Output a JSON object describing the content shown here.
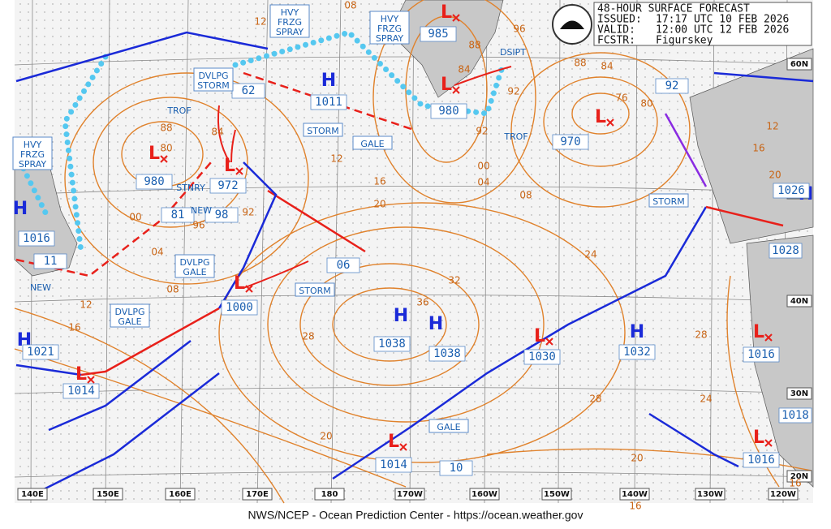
{
  "header": {
    "title": "48-HOUR SURFACE FORECAST",
    "issued_label": "ISSUED:",
    "issued": "17:17 UTC 10 FEB 2026",
    "valid_label": "VALID:",
    "valid": "12:00 UTC 12 FEB 2026",
    "forecaster_label": "FCSTR:",
    "forecaster": "Figurskey"
  },
  "footer": "NWS/NCEP - Ocean Prediction Center - https://ocean.weather.gov",
  "longitudes": [
    "140E",
    "150E",
    "160E",
    "170E",
    "180",
    "170W",
    "160W",
    "150W",
    "140W",
    "130W",
    "120W"
  ],
  "latitudes": [
    "60N",
    "50N",
    "40N",
    "30N",
    "20N"
  ],
  "pressure_systems": [
    {
      "symbol": "L",
      "value": "985"
    },
    {
      "symbol": "L",
      "value": "980"
    },
    {
      "symbol": "L",
      "value": "980"
    },
    {
      "symbol": "L",
      "value": "972"
    },
    {
      "symbol": "L",
      "value": "970"
    },
    {
      "symbol": "L",
      "value": "1000"
    },
    {
      "symbol": "L",
      "value": "1014"
    },
    {
      "symbol": "L",
      "value": "1030"
    },
    {
      "symbol": "L",
      "value": "1014"
    },
    {
      "symbol": "L",
      "value": "1016"
    },
    {
      "symbol": "L",
      "value": "1016"
    },
    {
      "symbol": "H",
      "value": "1011"
    },
    {
      "symbol": "H",
      "value": "1038"
    },
    {
      "symbol": "H",
      "value": "1038"
    },
    {
      "symbol": "H",
      "value": "1032"
    },
    {
      "symbol": "H",
      "value": "1016"
    },
    {
      "symbol": "H",
      "value": "1021"
    },
    {
      "symbol": "H",
      "value": "1026"
    }
  ],
  "pressure_values": [
    "1028",
    "1018",
    "62",
    "81",
    "98",
    "11",
    "06",
    "10",
    "92"
  ],
  "annotations": [
    {
      "lines": [
        "HVY",
        "FRZG",
        "SPRAY"
      ]
    },
    {
      "lines": [
        "HVY",
        "FRZG",
        "SPRAY"
      ]
    },
    {
      "lines": [
        "HVY",
        "FRZG",
        "SPRAY"
      ]
    },
    {
      "lines": [
        "DVLPG",
        "STORM"
      ]
    },
    {
      "lines": [
        "DVLPG",
        "GALE"
      ]
    },
    {
      "lines": [
        "DVLPG",
        "GALE"
      ]
    },
    {
      "lines": [
        "STORM"
      ]
    },
    {
      "lines": [
        "STORM"
      ]
    },
    {
      "lines": [
        "STORM"
      ]
    },
    {
      "lines": [
        "GALE"
      ]
    },
    {
      "lines": [
        "GALE"
      ]
    }
  ],
  "notes": [
    "TROF",
    "TROF",
    "STNRY",
    "NEW",
    "NEW",
    "DSIPT"
  ],
  "isobar_labels": [
    "12",
    "08",
    "96",
    "88",
    "84",
    "88",
    "84",
    "92",
    "76",
    "80",
    "92",
    "00",
    "04",
    "08",
    "88",
    "84",
    "80",
    "92",
    "96",
    "00",
    "04",
    "08",
    "12",
    "16",
    "12",
    "16",
    "20",
    "24",
    "32",
    "36",
    "28",
    "28",
    "24",
    "28",
    "20",
    "20",
    "12",
    "16",
    "20",
    "16",
    "16"
  ]
}
